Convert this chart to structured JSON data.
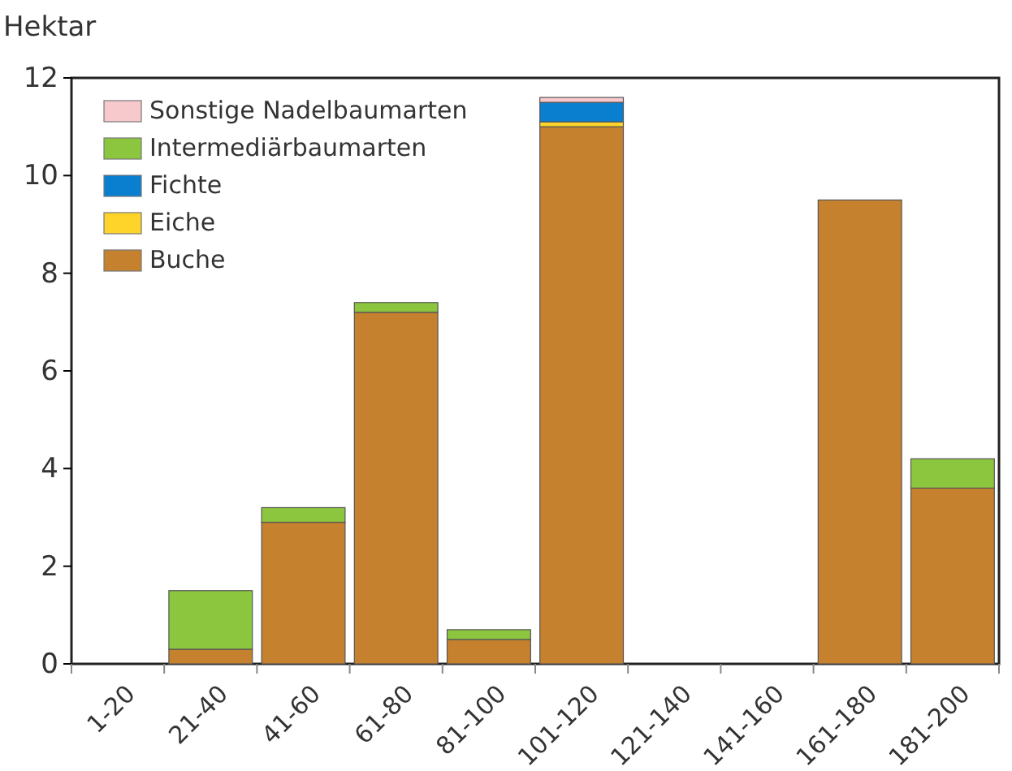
{
  "chart_data": {
    "type": "bar",
    "stacked": true,
    "ylabel": "Hektar",
    "categories": [
      "1-20",
      "21-40",
      "41-60",
      "61-80",
      "81-100",
      "101-120",
      "121-140",
      "141-160",
      "161-180",
      "181-200"
    ],
    "series": [
      {
        "name": "Buche",
        "color": "#c5812e",
        "values": [
          0,
          0.3,
          2.9,
          7.2,
          0.5,
          11.0,
          0,
          0,
          9.5,
          3.6
        ]
      },
      {
        "name": "Eiche",
        "color": "#ffd42a",
        "values": [
          0,
          0,
          0,
          0,
          0,
          0.1,
          0,
          0,
          0,
          0
        ]
      },
      {
        "name": "Fichte",
        "color": "#0a7fd0",
        "values": [
          0,
          0,
          0,
          0,
          0,
          0.4,
          0,
          0,
          0,
          0
        ]
      },
      {
        "name": "Intermediärbaumarten",
        "color": "#8cc63f",
        "values": [
          0,
          1.2,
          0.3,
          0.2,
          0.2,
          0,
          0,
          0,
          0,
          0.6
        ]
      },
      {
        "name": "Sonstige Nadelbaumarten",
        "color": "#f7c9cc",
        "values": [
          0,
          0,
          0,
          0,
          0,
          0.1,
          0,
          0,
          0,
          0
        ]
      }
    ],
    "ylim": [
      0,
      12
    ],
    "yticks": [
      0,
      2,
      4,
      6,
      8,
      10,
      12
    ],
    "grid": false,
    "legend": "top left"
  }
}
